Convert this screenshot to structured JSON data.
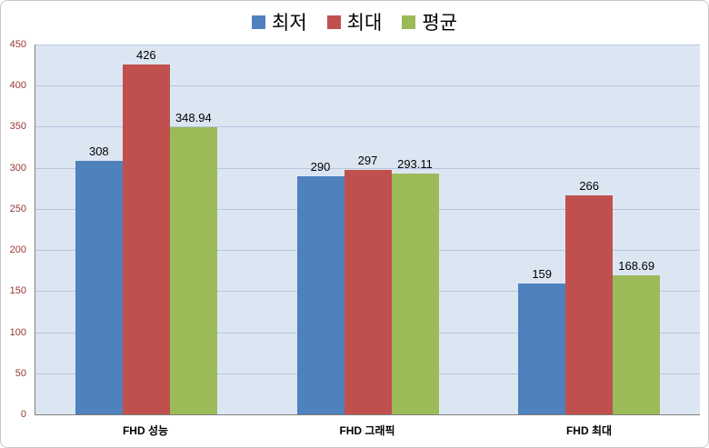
{
  "chart_data": {
    "type": "bar",
    "title": "",
    "categories": [
      "FHD 성능",
      "FHD 그래픽",
      "FHD 최대"
    ],
    "series": [
      {
        "name": "최저",
        "color": "#4f81bd",
        "values": [
          308,
          290,
          159
        ]
      },
      {
        "name": "최대",
        "color": "#c0504d",
        "values": [
          426,
          297,
          266
        ]
      },
      {
        "name": "평균",
        "color": "#9bbb59",
        "values": [
          348.94,
          293.11,
          168.69
        ]
      }
    ],
    "data_labels": [
      [
        "308",
        "290",
        "159"
      ],
      [
        "426",
        "297",
        "266"
      ],
      [
        "348.94",
        "293.11",
        "168.69"
      ]
    ],
    "xlabel": "",
    "ylabel": "",
    "ylim": [
      0,
      450
    ],
    "ytick_step": 50,
    "ytick_labels": [
      "0",
      "50",
      "100",
      "150",
      "200",
      "250",
      "300",
      "350",
      "400",
      "450"
    ],
    "grid": true,
    "legend_position": "top",
    "colors": {
      "plot_background": "#dce6f2",
      "gridline": "#b4c6de",
      "axis_line": "#808080",
      "ytick_text": "#963634",
      "value_label_text": "#000000",
      "category_label_text": "#000000"
    }
  }
}
